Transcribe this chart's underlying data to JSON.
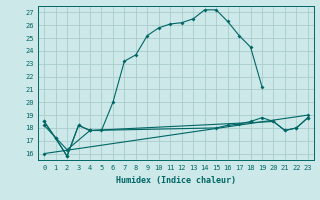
{
  "xlabel": "Humidex (Indice chaleur)",
  "bg_color": "#cce8e8",
  "grid_color": "#aacccc",
  "line_color": "#006666",
  "xlim": [
    -0.5,
    23.5
  ],
  "ylim": [
    15.5,
    27.5
  ],
  "xticks": [
    0,
    1,
    2,
    3,
    4,
    5,
    6,
    7,
    8,
    9,
    10,
    11,
    12,
    13,
    14,
    15,
    16,
    17,
    18,
    19,
    20,
    21,
    22,
    23
  ],
  "yticks": [
    16,
    17,
    18,
    19,
    20,
    21,
    22,
    23,
    24,
    25,
    26,
    27
  ],
  "series1_x": [
    0,
    1,
    2,
    3,
    4,
    5,
    6,
    7,
    8,
    9,
    10,
    11,
    12,
    13,
    14,
    15,
    16,
    17,
    18,
    19
  ],
  "series1_y": [
    18.5,
    17.2,
    15.8,
    18.2,
    17.8,
    17.8,
    20.0,
    23.2,
    23.7,
    25.2,
    25.8,
    26.1,
    26.2,
    26.5,
    27.2,
    27.2,
    26.3,
    25.2,
    24.3,
    21.2
  ],
  "series2_x": [
    0,
    1,
    2,
    3,
    4,
    20,
    21,
    22,
    23
  ],
  "series2_y": [
    18.5,
    17.2,
    15.8,
    18.2,
    17.8,
    18.5,
    17.8,
    18.0,
    18.8
  ],
  "series3_x": [
    0,
    2,
    4,
    15,
    16,
    17,
    18,
    19,
    20,
    21,
    22,
    23
  ],
  "series3_y": [
    18.2,
    16.3,
    17.8,
    18.0,
    18.2,
    18.3,
    18.5,
    18.8,
    18.5,
    17.8,
    18.0,
    18.8
  ],
  "series4_x": [
    0,
    23
  ],
  "series4_y": [
    16.0,
    19.0
  ]
}
